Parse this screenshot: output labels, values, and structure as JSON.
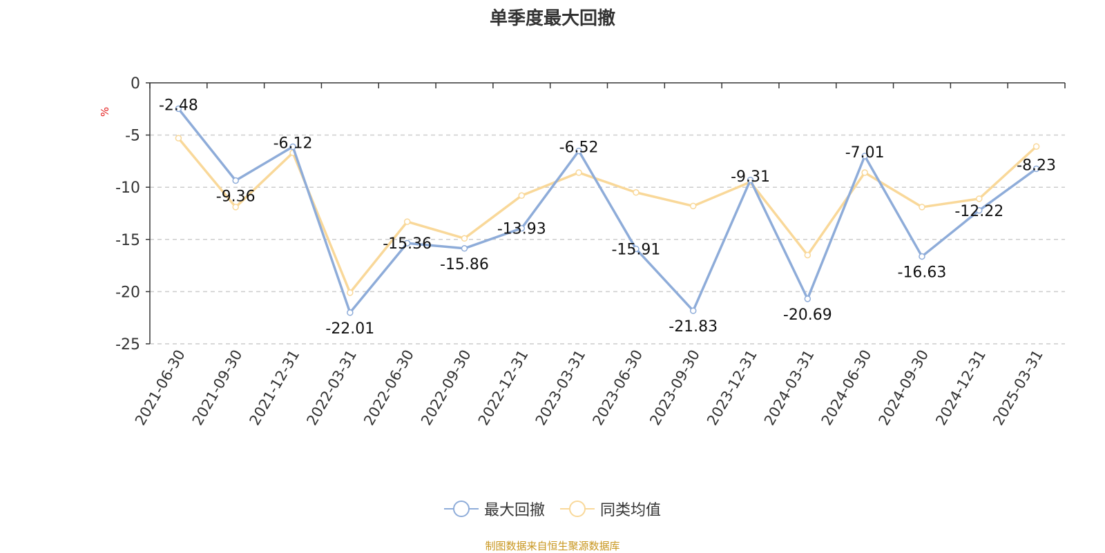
{
  "colors": {
    "series1": "#8eacd9",
    "series2": "#f9d899",
    "axis": "#333333",
    "grid": "#cccccc",
    "unit": "#e31b1b",
    "source": "#c8961e"
  },
  "legend": {
    "item1_icon": "circle-line-icon",
    "item2_icon": "circle-line-icon"
  },
  "source_text": "制图数据来自恒生聚源数据库",
  "chart_data": {
    "type": "line",
    "title": "单季度最大回撤",
    "ylabel": "%",
    "xlabel": "",
    "ylim": [
      -25,
      0
    ],
    "yticks": [
      0,
      -5,
      -10,
      -15,
      -20,
      -25
    ],
    "grid": true,
    "legend_position": "bottom-center",
    "categories": [
      "2021-06-30",
      "2021-09-30",
      "2021-12-31",
      "2022-03-31",
      "2022-06-30",
      "2022-09-30",
      "2022-12-31",
      "2023-03-31",
      "2023-06-30",
      "2023-09-30",
      "2023-12-31",
      "2024-03-31",
      "2024-06-30",
      "2024-09-30",
      "2024-12-31",
      "2025-03-31"
    ],
    "series": [
      {
        "name": "最大回撤",
        "values": [
          -2.48,
          -9.36,
          -6.12,
          -22.01,
          -15.36,
          -15.86,
          -13.93,
          -6.52,
          -15.91,
          -21.83,
          -9.31,
          -20.69,
          -7.01,
          -16.63,
          -12.22,
          -8.23
        ],
        "labels": [
          "-2.48",
          "-9.36",
          "-6.12",
          "-22.01",
          "-15.36",
          "-15.86",
          "-13.93",
          "-6.52",
          "-15.91",
          "-21.83",
          "-9.31",
          "-20.69",
          "-7.01",
          "-16.63",
          "-12.22",
          "-8.23"
        ]
      },
      {
        "name": "同类均值",
        "values": [
          -5.3,
          -11.9,
          -6.7,
          -20.1,
          -13.3,
          -14.9,
          -10.8,
          -8.6,
          -10.5,
          -11.8,
          -9.5,
          -16.5,
          -8.6,
          -11.9,
          -11.1,
          -6.1
        ]
      }
    ]
  }
}
